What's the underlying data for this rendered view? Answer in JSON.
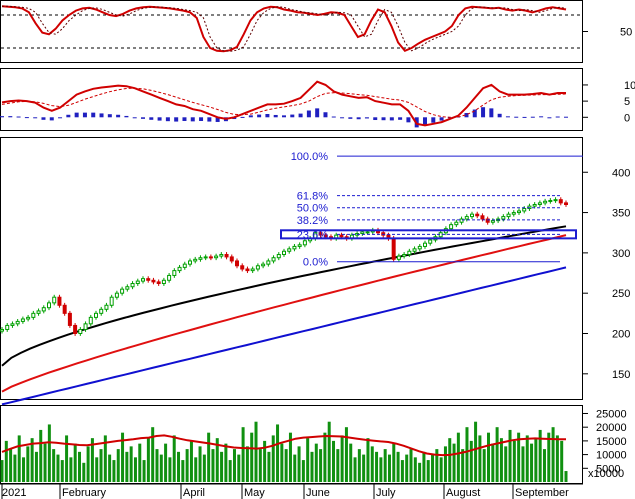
{
  "chart_data": [
    {
      "type": "line",
      "panel": "oscillator",
      "y_ticks": [
        50
      ],
      "ylim": [
        0,
        100
      ],
      "reference_lines": [
        80,
        20
      ],
      "series_color": "#d00000",
      "values": [
        96,
        95,
        94,
        92,
        85,
        65,
        48,
        45,
        55,
        70,
        80,
        88,
        92,
        93,
        90,
        85,
        80,
        78,
        82,
        88,
        92,
        94,
        95,
        94,
        93,
        92,
        90,
        88,
        85,
        75,
        40,
        20,
        15,
        14,
        16,
        22,
        45,
        70,
        85,
        92,
        95,
        94,
        90,
        88,
        85,
        84,
        82,
        80,
        82,
        85,
        84,
        80,
        60,
        40,
        45,
        70,
        90,
        85,
        60,
        30,
        15,
        20,
        28,
        35,
        40,
        45,
        50,
        60,
        80,
        92,
        95,
        94,
        93,
        92,
        93,
        90,
        88,
        90,
        88,
        85,
        88,
        92,
        94,
        92,
        90
      ]
    },
    {
      "type": "line",
      "panel": "macd",
      "y_ticks": [
        10,
        5,
        0
      ],
      "ylim": [
        -3,
        14
      ],
      "macd": [
        4.6,
        5.0,
        5.2,
        5.0,
        4.5,
        3.0,
        2.0,
        3.0,
        5.0,
        7.0,
        8.0,
        8.8,
        9.2,
        9.5,
        9.8,
        9.6,
        9.0,
        8.0,
        7.0,
        6.0,
        5.0,
        4.0,
        3.5,
        2.5,
        2.0,
        1.0,
        0.0,
        -0.5,
        0.0,
        1.0,
        2.0,
        3.0,
        4.0,
        4.0,
        4.2,
        5.0,
        6.0,
        8.5,
        11.0,
        10.0,
        8.0,
        7.0,
        6.5,
        6.0,
        6.2,
        5.0,
        4.5,
        4.0,
        4.0,
        2.0,
        -2.0,
        -2.5,
        -2.0,
        -1.5,
        -0.5,
        0.5,
        3.0,
        6.0,
        9.0,
        10.0,
        8.0,
        7.0,
        7.0,
        7.0,
        7.2,
        7.5,
        7.0,
        7.5,
        7.5
      ],
      "signal": [
        4.0,
        4.4,
        4.8,
        4.9,
        4.8,
        4.3,
        3.6,
        3.3,
        3.7,
        4.6,
        5.6,
        6.4,
        7.2,
        7.9,
        8.5,
        8.9,
        9.0,
        8.8,
        8.3,
        7.7,
        7.0,
        6.2,
        5.4,
        4.6,
        3.9,
        3.2,
        2.4,
        1.5,
        0.9,
        0.8,
        1.0,
        1.6,
        2.3,
        2.8,
        3.2,
        3.6,
        4.1,
        5.0,
        6.4,
        7.4,
        7.6,
        7.5,
        7.3,
        7.0,
        6.8,
        6.4,
        6.0,
        5.6,
        5.3,
        4.6,
        3.2,
        1.8,
        0.8,
        0.2,
        0.0,
        0.1,
        0.8,
        2.0,
        3.8,
        5.4,
        6.2,
        6.5,
        6.7,
        6.8,
        6.9,
        7.0,
        7.0,
        7.1,
        7.2
      ],
      "macd_color": "#d00000",
      "signal_color": "#d00000",
      "hist_color": "#2020c0"
    },
    {
      "type": "line",
      "panel": "price",
      "y_ticks": [
        400,
        350,
        300,
        250,
        200,
        150
      ],
      "ylim": [
        120,
        440
      ],
      "candles_close": [
        205,
        210,
        212,
        215,
        218,
        220,
        225,
        228,
        232,
        238,
        245,
        235,
        225,
        210,
        200,
        205,
        212,
        220,
        225,
        230,
        235,
        245,
        250,
        255,
        258,
        262,
        265,
        268,
        266,
        264,
        262,
        266,
        272,
        278,
        282,
        286,
        290,
        292,
        294,
        295,
        294,
        296,
        298,
        295,
        290,
        284,
        280,
        278,
        280,
        284,
        286,
        290,
        294,
        298,
        302,
        305,
        308,
        310,
        315,
        318,
        325,
        322,
        320,
        318,
        322,
        320,
        318,
        322,
        324,
        326,
        326,
        328,
        325,
        322,
        318,
        292,
        296,
        298,
        302,
        305,
        308,
        312,
        316,
        320,
        325,
        330,
        335,
        338,
        342,
        345,
        348,
        346,
        342,
        338,
        340,
        342,
        345,
        348,
        350,
        352,
        355,
        358,
        360,
        362,
        364,
        365,
        366,
        362,
        360
      ],
      "moving_averages": [
        {
          "color": "#000000",
          "start": 160,
          "end": 333
        },
        {
          "color": "#e01010",
          "start": 128,
          "end": 322
        },
        {
          "color": "#1010d0",
          "start": 112,
          "end": 282
        }
      ],
      "fibonacci": [
        {
          "label": "100.0%",
          "value": 420
        },
        {
          "label": "61.8%",
          "value": 371
        },
        {
          "label": "50.0%",
          "value": 356
        },
        {
          "label": "38.2%",
          "value": 341
        },
        {
          "label": "23.6%",
          "value": 323
        },
        {
          "label": "0.0%",
          "value": 289
        }
      ],
      "zone": [
        318,
        328
      ],
      "candle_up_color": "#00a000",
      "candle_down_color": "#d00000"
    },
    {
      "type": "bar",
      "panel": "volume",
      "y_ticks": [
        25000,
        20000,
        15000,
        10000,
        5000
      ],
      "ylim": [
        0,
        27000
      ],
      "unit_label": "x10000",
      "values": [
        8000,
        15000,
        12000,
        10000,
        17000,
        9000,
        13000,
        16000,
        11000,
        19000,
        14000,
        21000,
        12000,
        10000,
        8000,
        17000,
        9000,
        14000,
        11000,
        7000,
        13000,
        16000,
        9000,
        12000,
        17000,
        10000,
        8000,
        12000,
        18000,
        11000,
        13000,
        9000,
        14000,
        8000,
        16000,
        20000,
        12000,
        10000,
        14000,
        9000,
        17000,
        11000,
        8000,
        12000,
        15000,
        9000,
        13000,
        10000,
        18000,
        12000,
        16000,
        11000,
        14000,
        8000,
        12000,
        10000,
        20000,
        13000,
        18000,
        22000,
        12000,
        15000,
        11000,
        17000,
        21000,
        14000,
        12000,
        18000,
        10000,
        13000,
        8000,
        16000,
        11000,
        14000,
        12000,
        18000,
        22000,
        15000,
        12000,
        17000,
        20000,
        14000,
        9000,
        12000,
        10000,
        16000,
        13000,
        11000,
        9000,
        12000,
        10000,
        14000,
        11000,
        8000,
        10000,
        12000,
        9000,
        7000,
        11000,
        8000,
        10000,
        12000,
        9000,
        13000,
        16000,
        14000,
        18000,
        12000,
        20000,
        15000,
        22000,
        17000,
        12000,
        18000,
        14000,
        20000,
        16000,
        13000,
        19000,
        15000,
        18000,
        13000,
        17000,
        14000,
        16000,
        19000,
        12000,
        18000,
        20000,
        17000,
        15000,
        4000
      ],
      "ma": [
        11000,
        12000,
        13000,
        13500,
        14000,
        14200,
        14500,
        14300,
        14000,
        13800,
        13500,
        13400,
        13800,
        14200,
        14600,
        15000,
        15300,
        15600,
        16000,
        16200,
        16800,
        17000,
        16500,
        15800,
        15200,
        14800,
        14400,
        14000,
        13500,
        13000,
        12600,
        12400,
        12300,
        12200,
        12500,
        13200,
        14200,
        15000,
        15800,
        16200,
        16400,
        16600,
        16800,
        16700,
        16600,
        16200,
        15800,
        15400,
        15100,
        14800,
        14600,
        14000,
        13200,
        12200,
        11200,
        10400,
        10000,
        9800,
        9900,
        10400,
        11000,
        11800,
        12600,
        13400,
        14000,
        14600,
        15200,
        15600,
        15800,
        15900,
        15800,
        15700,
        15600,
        15600
      ],
      "bar_color": "#109010",
      "ma_color": "#d00000"
    }
  ],
  "x_axis": {
    "labels": [
      "2021",
      "February",
      "April",
      "May",
      "June",
      "July",
      "August",
      "September"
    ]
  }
}
